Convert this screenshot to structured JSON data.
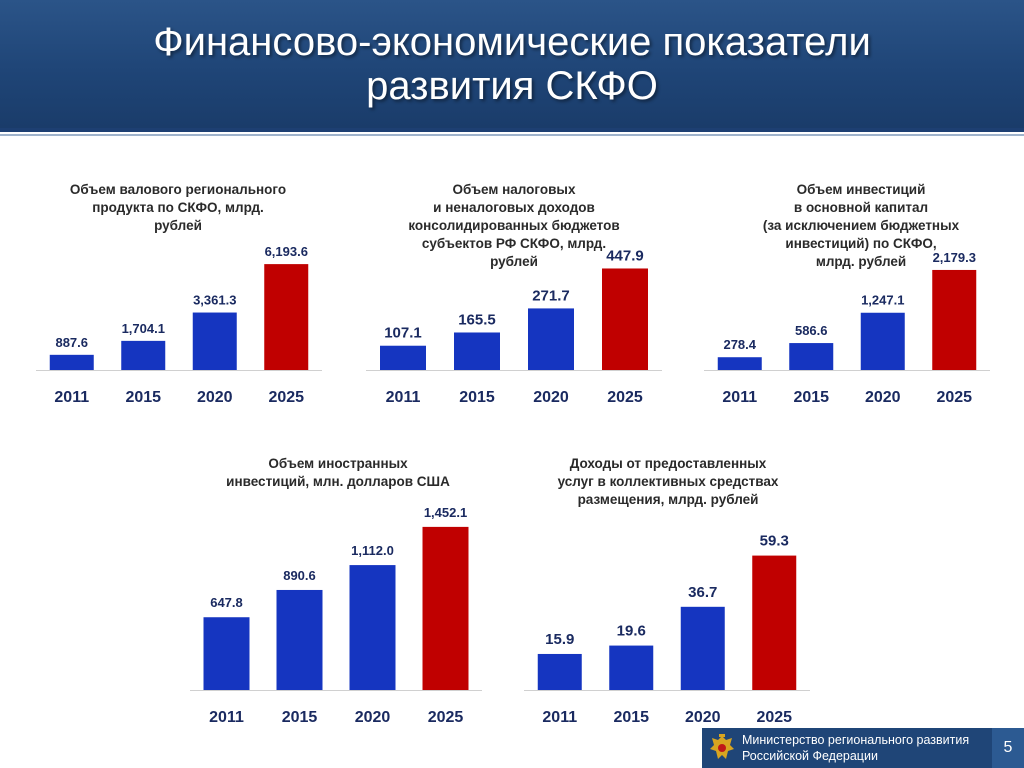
{
  "header": {
    "title_line1": "Финансово-экономические показатели",
    "title_line2": "развития СКФО"
  },
  "colors": {
    "blue_bar": "#1535c0",
    "red_bar": "#c00000",
    "label_text": "#1a2a60",
    "header_bg": "#1f4577"
  },
  "footer": {
    "line1": "Министерство регионального развития",
    "line2": "Российской Федерации",
    "emblem_icon": "coat-of-arms-icon",
    "slide_number": "5"
  },
  "chart_data": [
    {
      "type": "bar",
      "title_lines": [
        "Объем валового регионального",
        "продукта по СКФО, млрд.",
        "рублей"
      ],
      "categories": [
        "2011",
        "2015",
        "2020",
        "2025"
      ],
      "values": [
        887.6,
        1704.1,
        3361.3,
        6193.6
      ],
      "value_labels": [
        "887.6",
        "1,704.1",
        "3,361.3",
        "6,193.6"
      ],
      "ylim": [
        0,
        6200
      ],
      "bar_colors": [
        "#1535c0",
        "#1535c0",
        "#1535c0",
        "#c00000"
      ],
      "grid": false
    },
    {
      "type": "bar",
      "title_lines": [
        "Объем налоговых",
        "и неналоговых доходов",
        "консолидированных бюджетов",
        "субъектов РФ СКФО, млрд.",
        "рублей"
      ],
      "categories": [
        "2011",
        "2015",
        "2020",
        "2025"
      ],
      "values": [
        107.1,
        165.5,
        271.7,
        447.9
      ],
      "value_labels": [
        "107.1",
        "165.5",
        "271.7",
        "447.9"
      ],
      "ylim": [
        0,
        450
      ],
      "bar_colors": [
        "#1535c0",
        "#1535c0",
        "#1535c0",
        "#c00000"
      ],
      "grid": false
    },
    {
      "type": "bar",
      "title_lines": [
        "Объем инвестиций",
        "в основной капитал",
        "(за исключением бюджетных",
        "инвестиций) по СКФО,",
        "млрд. рублей"
      ],
      "categories": [
        "2011",
        "2015",
        "2020",
        "2025"
      ],
      "values": [
        278.4,
        586.6,
        1247.1,
        2179.3
      ],
      "value_labels": [
        "278.4",
        "586.6",
        "1,247.1",
        "2,179.3"
      ],
      "ylim": [
        0,
        2200
      ],
      "bar_colors": [
        "#1535c0",
        "#1535c0",
        "#1535c0",
        "#c00000"
      ],
      "grid": false
    },
    {
      "type": "bar",
      "title_lines": [
        "Объем иностранных",
        "инвестиций, млн. долларов США"
      ],
      "categories": [
        "2011",
        "2015",
        "2020",
        "2025"
      ],
      "values": [
        647.8,
        890.6,
        1112.0,
        1452.1
      ],
      "value_labels": [
        "647.8",
        "890.6",
        "1,112.0",
        "1,452.1"
      ],
      "ylim": [
        0,
        1460
      ],
      "bar_colors": [
        "#1535c0",
        "#1535c0",
        "#1535c0",
        "#c00000"
      ],
      "grid": false
    },
    {
      "type": "bar",
      "title_lines": [
        "Доходы от предоставленных",
        "услуг в коллективных средствах",
        "размещения, млрд. рублей"
      ],
      "categories": [
        "2011",
        "2015",
        "2020",
        "2025"
      ],
      "values": [
        15.9,
        19.6,
        36.7,
        59.3
      ],
      "value_labels": [
        "15.9",
        "19.6",
        "36.7",
        "59.3"
      ],
      "ylim": [
        0,
        60
      ],
      "bar_colors": [
        "#1535c0",
        "#1535c0",
        "#1535c0",
        "#c00000"
      ],
      "grid": false
    }
  ]
}
